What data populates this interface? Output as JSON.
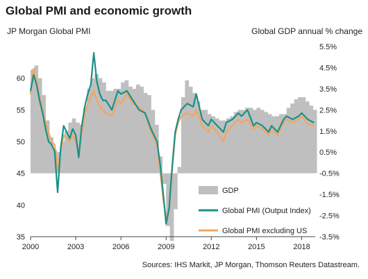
{
  "chart_data": {
    "type": "bar+line",
    "title": "Global PMI and economic growth",
    "ylabel_left": "JP Morgan  Global  PMI",
    "ylabel_right": "Global  GDP  annual % change",
    "source": "Sources: IHS Markit, JP Morgan, Thomson Reuters Datastream.",
    "x_ticks": [
      "2000",
      "2003",
      "2006",
      "2009",
      "2012",
      "2015",
      "2018"
    ],
    "y_left_ticks": [
      "35",
      "40",
      "45",
      "50",
      "55",
      "60"
    ],
    "y_right_ticks": [
      "5.5%",
      "4.5%",
      "3.5%",
      "2.5%",
      "1.5%",
      "0.5%",
      "-0.5%",
      "-1.5%",
      "-2.5%",
      "-3.5%"
    ],
    "ylim_left": [
      35,
      65
    ],
    "ylim_right": [
      -3.5,
      5.5
    ],
    "xlim": [
      2000.0,
      2018.9
    ],
    "legend_position": "bottom-right",
    "colors": {
      "gdp": "#bfbfbf",
      "pmi": "#1a9086",
      "pmi_ex_us": "#f4a460",
      "axis": "#444444"
    },
    "gdp": {
      "name": "GDP",
      "quarters": [
        2000.0,
        2000.25,
        2000.5,
        2000.75,
        2001.0,
        2001.25,
        2001.5,
        2001.75,
        2002.0,
        2002.25,
        2002.5,
        2002.75,
        2003.0,
        2003.25,
        2003.5,
        2003.75,
        2004.0,
        2004.25,
        2004.5,
        2004.75,
        2005.0,
        2005.25,
        2005.5,
        2005.75,
        2006.0,
        2006.25,
        2006.5,
        2006.75,
        2007.0,
        2007.25,
        2007.5,
        2007.75,
        2008.0,
        2008.25,
        2008.5,
        2008.75,
        2009.0,
        2009.25,
        2009.5,
        2009.75,
        2010.0,
        2010.25,
        2010.5,
        2010.75,
        2011.0,
        2011.25,
        2011.5,
        2011.75,
        2012.0,
        2012.25,
        2012.5,
        2012.75,
        2013.0,
        2013.25,
        2013.5,
        2013.75,
        2014.0,
        2014.25,
        2014.5,
        2014.75,
        2015.0,
        2015.25,
        2015.5,
        2015.75,
        2016.0,
        2016.25,
        2016.5,
        2016.75,
        2017.0,
        2017.25,
        2017.5,
        2017.75,
        2018.0,
        2018.25,
        2018.5,
        2018.75
      ],
      "values": [
        4.4,
        4.6,
        4.0,
        3.2,
        2.0,
        1.2,
        0.6,
        0.5,
        1.0,
        1.5,
        1.9,
        2.1,
        1.9,
        1.8,
        2.6,
        3.5,
        4.0,
        4.2,
        4.0,
        3.8,
        3.4,
        3.4,
        3.5,
        3.5,
        3.8,
        3.9,
        3.6,
        3.5,
        3.7,
        3.6,
        3.3,
        3.2,
        2.5,
        1.8,
        0.3,
        -1.0,
        -3.0,
        -3.7,
        -2.2,
        -0.2,
        3.1,
        3.9,
        3.6,
        3.3,
        2.9,
        2.5,
        2.5,
        2.3,
        2.2,
        2.1,
        2.0,
        2.0,
        2.1,
        2.2,
        2.4,
        2.5,
        2.5,
        2.6,
        2.6,
        2.5,
        2.6,
        2.5,
        2.4,
        2.3,
        2.2,
        2.2,
        2.3,
        2.3,
        2.6,
        2.8,
        3.0,
        3.1,
        3.1,
        2.9,
        2.7,
        2.5
      ]
    },
    "pmi": {
      "name": "Global PMI (Output Index)",
      "x": [
        2000.0,
        2000.2,
        2000.4,
        2000.6,
        2000.8,
        2001.0,
        2001.2,
        2001.4,
        2001.6,
        2001.8,
        2002.0,
        2002.2,
        2002.4,
        2002.6,
        2002.8,
        2003.0,
        2003.2,
        2003.4,
        2003.6,
        2003.8,
        2004.0,
        2004.2,
        2004.4,
        2004.6,
        2004.8,
        2005.0,
        2005.4,
        2005.8,
        2006.0,
        2006.4,
        2006.8,
        2007.2,
        2007.6,
        2008.0,
        2008.4,
        2008.6,
        2008.8,
        2009.0,
        2009.2,
        2009.4,
        2009.6,
        2009.8,
        2010.0,
        2010.4,
        2010.8,
        2011.0,
        2011.4,
        2011.8,
        2012.0,
        2012.4,
        2012.8,
        2013.0,
        2013.4,
        2013.8,
        2014.0,
        2014.4,
        2014.8,
        2015.0,
        2015.4,
        2015.8,
        2016.0,
        2016.4,
        2016.8,
        2017.0,
        2017.4,
        2017.8,
        2018.0,
        2018.4,
        2018.8
      ],
      "values": [
        58.0,
        60.5,
        59.0,
        56.5,
        54.5,
        52.0,
        50.0,
        49.5,
        48.5,
        42.0,
        49.0,
        52.5,
        51.5,
        50.5,
        52.0,
        51.0,
        47.5,
        52.5,
        55.5,
        57.5,
        59.0,
        64.0,
        59.5,
        57.5,
        56.5,
        56.5,
        55.0,
        58.0,
        57.5,
        58.0,
        56.5,
        55.0,
        54.5,
        52.0,
        50.0,
        46.5,
        42.0,
        37.0,
        39.5,
        46.0,
        51.5,
        53.5,
        55.0,
        56.0,
        55.5,
        57.5,
        53.5,
        52.5,
        53.5,
        52.5,
        51.5,
        53.0,
        53.5,
        54.5,
        54.0,
        55.0,
        52.5,
        53.0,
        52.5,
        51.5,
        52.5,
        51.5,
        53.5,
        54.0,
        53.5,
        54.0,
        54.5,
        53.5,
        53.0
      ]
    },
    "pmi_ex_us": {
      "name": "Global PMI excluding US",
      "x": [
        2000.0,
        2000.2,
        2000.4,
        2000.6,
        2000.8,
        2001.0,
        2001.2,
        2001.4,
        2001.6,
        2001.8,
        2002.0,
        2002.2,
        2002.4,
        2002.6,
        2002.8,
        2003.0,
        2003.2,
        2003.4,
        2003.6,
        2003.8,
        2004.0,
        2004.2,
        2004.4,
        2004.6,
        2004.8,
        2005.0,
        2005.4,
        2005.8,
        2006.0,
        2006.4,
        2006.8,
        2007.2,
        2007.6,
        2008.0,
        2008.4,
        2008.6,
        2008.8,
        2009.0,
        2009.2,
        2009.4,
        2009.6,
        2009.8,
        2010.0,
        2010.4,
        2010.8,
        2011.0,
        2011.4,
        2011.8,
        2012.0,
        2012.4,
        2012.8,
        2013.0,
        2013.4,
        2013.8,
        2014.0,
        2014.4,
        2014.8,
        2015.0,
        2015.4,
        2015.8,
        2016.0,
        2016.4,
        2016.8,
        2017.0,
        2017.4,
        2017.8,
        2018.0,
        2018.4,
        2018.8
      ],
      "values": [
        57.5,
        61.5,
        59.5,
        57.0,
        55.0,
        53.0,
        51.5,
        50.0,
        49.5,
        45.5,
        48.5,
        51.0,
        50.5,
        50.0,
        51.0,
        50.0,
        48.0,
        51.5,
        54.5,
        56.0,
        57.0,
        58.0,
        56.5,
        55.5,
        55.0,
        54.5,
        54.0,
        56.5,
        56.0,
        57.5,
        56.0,
        55.5,
        54.5,
        51.5,
        49.5,
        45.5,
        41.0,
        38.0,
        39.0,
        45.5,
        51.0,
        53.0,
        54.0,
        54.5,
        54.0,
        55.0,
        52.5,
        51.5,
        52.5,
        51.5,
        50.0,
        51.5,
        52.5,
        53.5,
        53.0,
        53.5,
        52.0,
        52.5,
        52.0,
        51.0,
        52.0,
        51.0,
        53.0,
        53.5,
        53.0,
        53.5,
        54.0,
        52.8,
        52.5
      ]
    }
  }
}
